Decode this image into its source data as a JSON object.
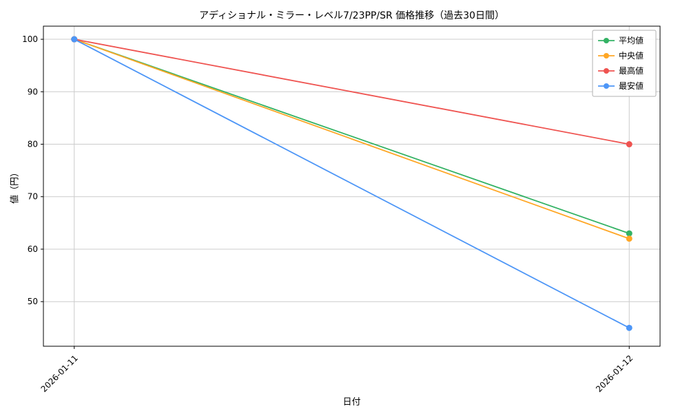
{
  "chart_data": {
    "type": "line",
    "title": "アディショナル・ミラー・レベル7/23PP/SR 価格推移（過去30日間）",
    "xlabel": "日付",
    "ylabel": "値（円）",
    "x": [
      "2026-01-11",
      "2026-01-12"
    ],
    "series": [
      {
        "name": "平均値",
        "color": "#33b264",
        "values": [
          100,
          63
        ]
      },
      {
        "name": "中央値",
        "color": "#ffa726",
        "values": [
          100,
          62
        ]
      },
      {
        "name": "最高値",
        "color": "#ef5350",
        "values": [
          100,
          80
        ]
      },
      {
        "name": "最安値",
        "color": "#4d96f7",
        "values": [
          100,
          45
        ]
      }
    ],
    "yticks": [
      50,
      60,
      70,
      80,
      90,
      100
    ],
    "ylim": [
      41.5,
      102.5
    ],
    "grid": true,
    "legend_position": "upper right",
    "colors": {
      "grid": "#cccccc",
      "spine": "#000000",
      "background": "#ffffff"
    }
  }
}
